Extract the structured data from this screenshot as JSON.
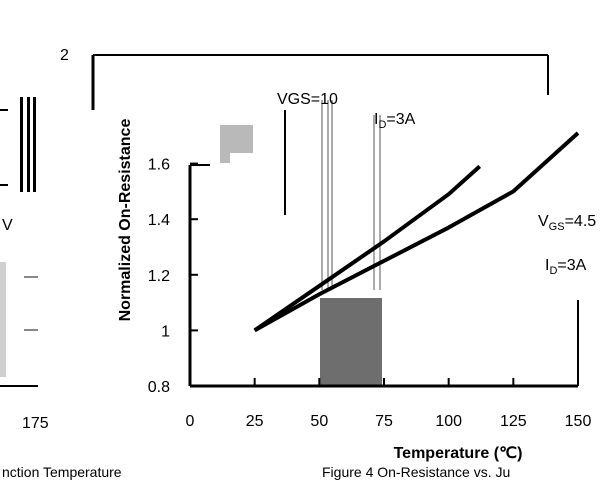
{
  "left_fragment": {
    "v_label": "V",
    "tick_label": "175",
    "caption": "nction Temperature"
  },
  "chart_data": {
    "type": "line",
    "title": "",
    "xlabel": "Temperature (℃)",
    "ylabel": "Normalized On-Resistance",
    "xlim": [
      0,
      150
    ],
    "ylim": [
      0.8,
      1.8
    ],
    "x_ticks": [
      "0",
      "25",
      "50",
      "75",
      "100",
      "125",
      "150"
    ],
    "y_ticks": [
      "0.8",
      "1",
      "1.2",
      "1.4",
      "1.6"
    ],
    "partial_top_tick": "2",
    "grid": false,
    "series": [
      {
        "name": "VGS=10V, ID=3A",
        "x": [
          25,
          50,
          75,
          100,
          112
        ],
        "y": [
          1.0,
          1.16,
          1.32,
          1.49,
          1.59
        ]
      },
      {
        "name": "VGS=4.5V, ID=3A",
        "x": [
          25,
          50,
          75,
          100,
          125,
          150
        ],
        "y": [
          1.0,
          1.13,
          1.25,
          1.37,
          1.5,
          1.71
        ]
      }
    ],
    "annotations": {
      "upper_vgs": "VGS=10",
      "upper_id": "I",
      "upper_id_sub": "D",
      "upper_id_val": "=3A",
      "lower_vgs": "V",
      "lower_vgs_sub": "GS",
      "lower_vgs_val": "=4.5",
      "lower_id": "I",
      "lower_id_sub": "D",
      "lower_id_val": "=3A"
    },
    "caption": "Figure 4 On-Resistance vs. Ju"
  },
  "colors": {
    "line": "#000000",
    "artifact_gray": "#6e6e6e",
    "artifact_light": "#b9b9b9"
  }
}
